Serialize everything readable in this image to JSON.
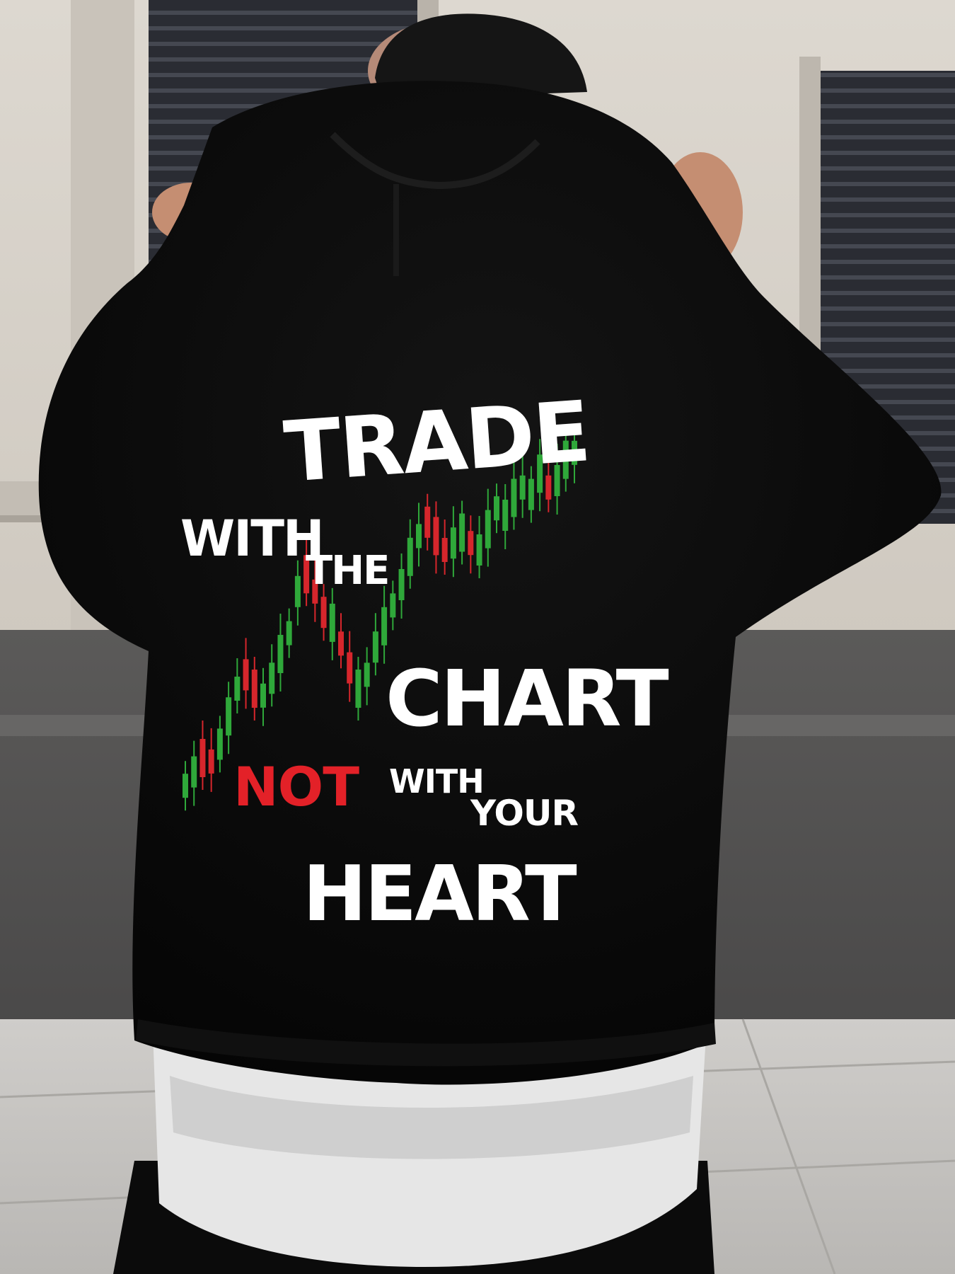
{
  "print": {
    "line1": "TRADE",
    "line2a": "WITH",
    "line2b": "THE",
    "line3": "CHART",
    "line4a": "NOT",
    "line4b": "WITH",
    "line4c": "YOUR",
    "line5": "HEART"
  },
  "colors": {
    "hoodie": "#070707",
    "print_text": "#ffffff",
    "accent_not": "#e32128",
    "candle_up": "#2fa83a",
    "candle_down": "#d6262c",
    "wall": "#d8d3cb",
    "shutter": "#2e3037",
    "pavement": "#c4c2bf",
    "undershirt": "#e4e4e4"
  },
  "candles": [
    [
      "g",
      0.02
    ],
    [
      "g",
      0.06
    ],
    [
      "r",
      0.1
    ],
    [
      "r",
      0.09
    ],
    [
      "g",
      0.14
    ],
    [
      "g",
      0.22
    ],
    [
      "g",
      0.3
    ],
    [
      "r",
      0.34
    ],
    [
      "r",
      0.3
    ],
    [
      "g",
      0.28
    ],
    [
      "g",
      0.33
    ],
    [
      "g",
      0.4
    ],
    [
      "g",
      0.46
    ],
    [
      "g",
      0.58
    ],
    [
      "r",
      0.63
    ],
    [
      "r",
      0.58
    ],
    [
      "r",
      0.52
    ],
    [
      "g",
      0.49
    ],
    [
      "r",
      0.43
    ],
    [
      "r",
      0.36
    ],
    [
      "g",
      0.3
    ],
    [
      "g",
      0.34
    ],
    [
      "g",
      0.42
    ],
    [
      "g",
      0.48
    ],
    [
      "g",
      0.54
    ],
    [
      "g",
      0.6
    ],
    [
      "g",
      0.68
    ],
    [
      "g",
      0.74
    ],
    [
      "r",
      0.78
    ],
    [
      "r",
      0.74
    ],
    [
      "r",
      0.7
    ],
    [
      "g",
      0.72
    ],
    [
      "g",
      0.75
    ],
    [
      "r",
      0.72
    ],
    [
      "g",
      0.7
    ],
    [
      "g",
      0.76
    ],
    [
      "g",
      0.82
    ],
    [
      "g",
      0.8
    ],
    [
      "g",
      0.85
    ],
    [
      "g",
      0.88
    ],
    [
      "g",
      0.86
    ],
    [
      "g",
      0.92
    ],
    [
      "r",
      0.88
    ],
    [
      "g",
      0.9
    ],
    [
      "g",
      0.96
    ],
    [
      "g",
      0.98
    ]
  ]
}
